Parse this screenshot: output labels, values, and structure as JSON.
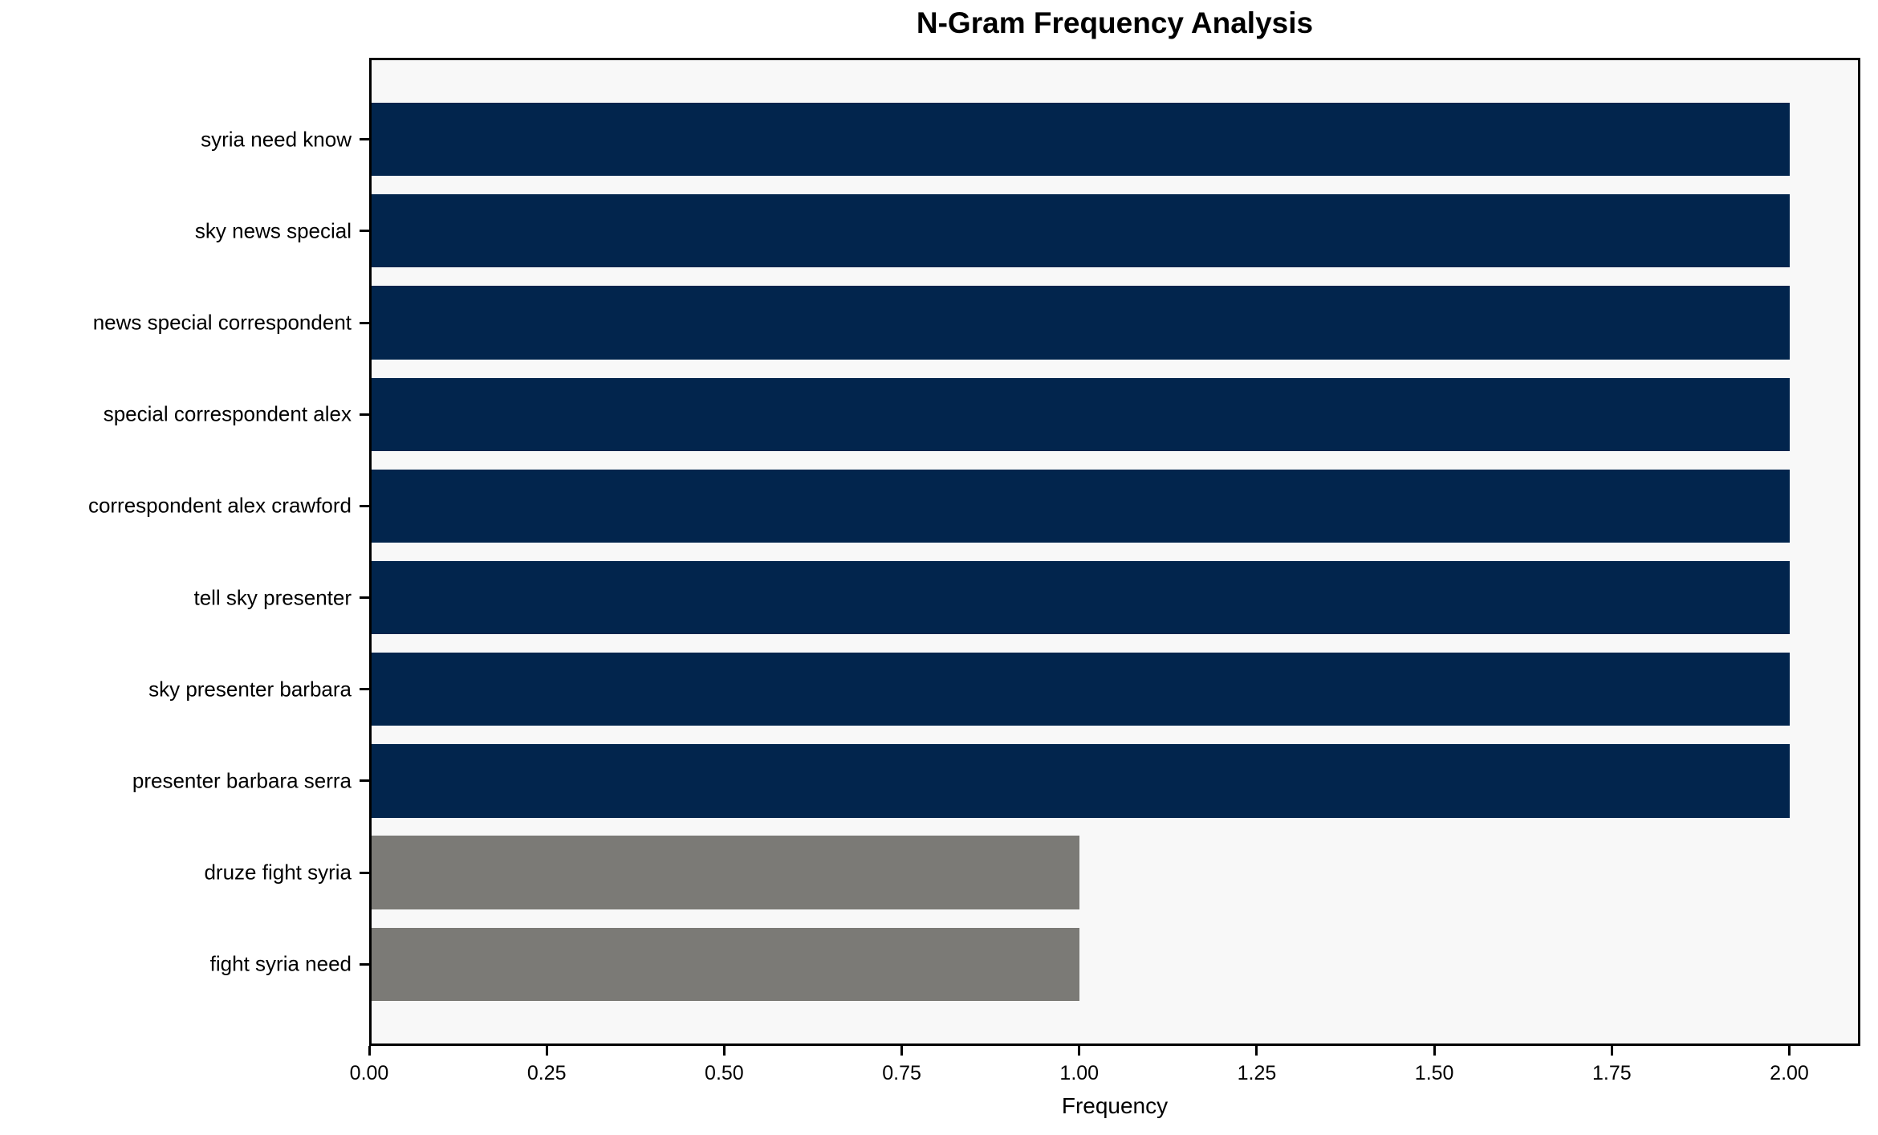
{
  "chart_data": {
    "type": "bar",
    "orientation": "horizontal",
    "title": "N-Gram Frequency Analysis",
    "xlabel": "Frequency",
    "ylabel": "",
    "categories": [
      "syria need know",
      "sky news special",
      "news special correspondent",
      "special correspondent alex",
      "correspondent alex crawford",
      "tell sky presenter",
      "sky presenter barbara",
      "presenter barbara serra",
      "druze fight syria",
      "fight syria need"
    ],
    "values": [
      2,
      2,
      2,
      2,
      2,
      2,
      2,
      2,
      1,
      1
    ],
    "bar_colors": [
      "#02254d",
      "#02254d",
      "#02254d",
      "#02254d",
      "#02254d",
      "#02254d",
      "#02254d",
      "#02254d",
      "#7b7a76",
      "#7b7a76"
    ],
    "xlim": [
      0,
      2.1
    ],
    "x_ticks": [
      {
        "value": 0.0,
        "label": "0.00"
      },
      {
        "value": 0.25,
        "label": "0.25"
      },
      {
        "value": 0.5,
        "label": "0.50"
      },
      {
        "value": 0.75,
        "label": "0.75"
      },
      {
        "value": 1.0,
        "label": "1.00"
      },
      {
        "value": 1.25,
        "label": "1.25"
      },
      {
        "value": 1.5,
        "label": "1.50"
      },
      {
        "value": 1.75,
        "label": "1.75"
      },
      {
        "value": 2.0,
        "label": "2.00"
      }
    ],
    "grid": false,
    "legend": null,
    "colors": {
      "bar_primary": "#02254d",
      "bar_secondary": "#7b7a76",
      "plot_background": "#f8f8f8",
      "figure_background": "#ffffff",
      "axis": "#000000"
    }
  }
}
